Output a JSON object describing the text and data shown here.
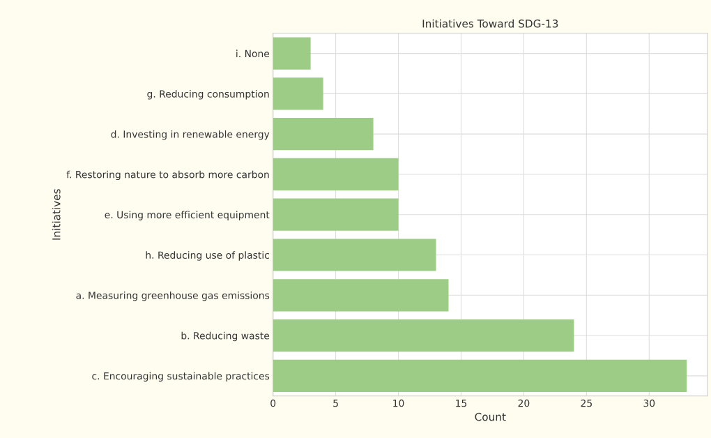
{
  "chart_data": {
    "type": "bar",
    "orientation": "horizontal",
    "title": "Initiatives Toward SDG-13",
    "xlabel": "Count",
    "ylabel": "Initiatives",
    "categories": [
      "i. None",
      "g. Reducing consumption",
      "d. Investing in renewable energy",
      "f. Restoring nature to absorb more carbon",
      "e. Using more efficient equipment",
      "h. Reducing use of plastic",
      "a. Measuring greenhouse gas emissions",
      "b. Reducing waste",
      "c. Encouraging sustainable practices"
    ],
    "values": [
      3,
      4,
      8,
      10,
      10,
      13,
      14,
      24,
      33
    ],
    "color": "#9ccc85",
    "xlim": [
      0,
      34.65
    ],
    "xticks": [
      0,
      5,
      10,
      15,
      20,
      25,
      30
    ],
    "grid": true
  }
}
